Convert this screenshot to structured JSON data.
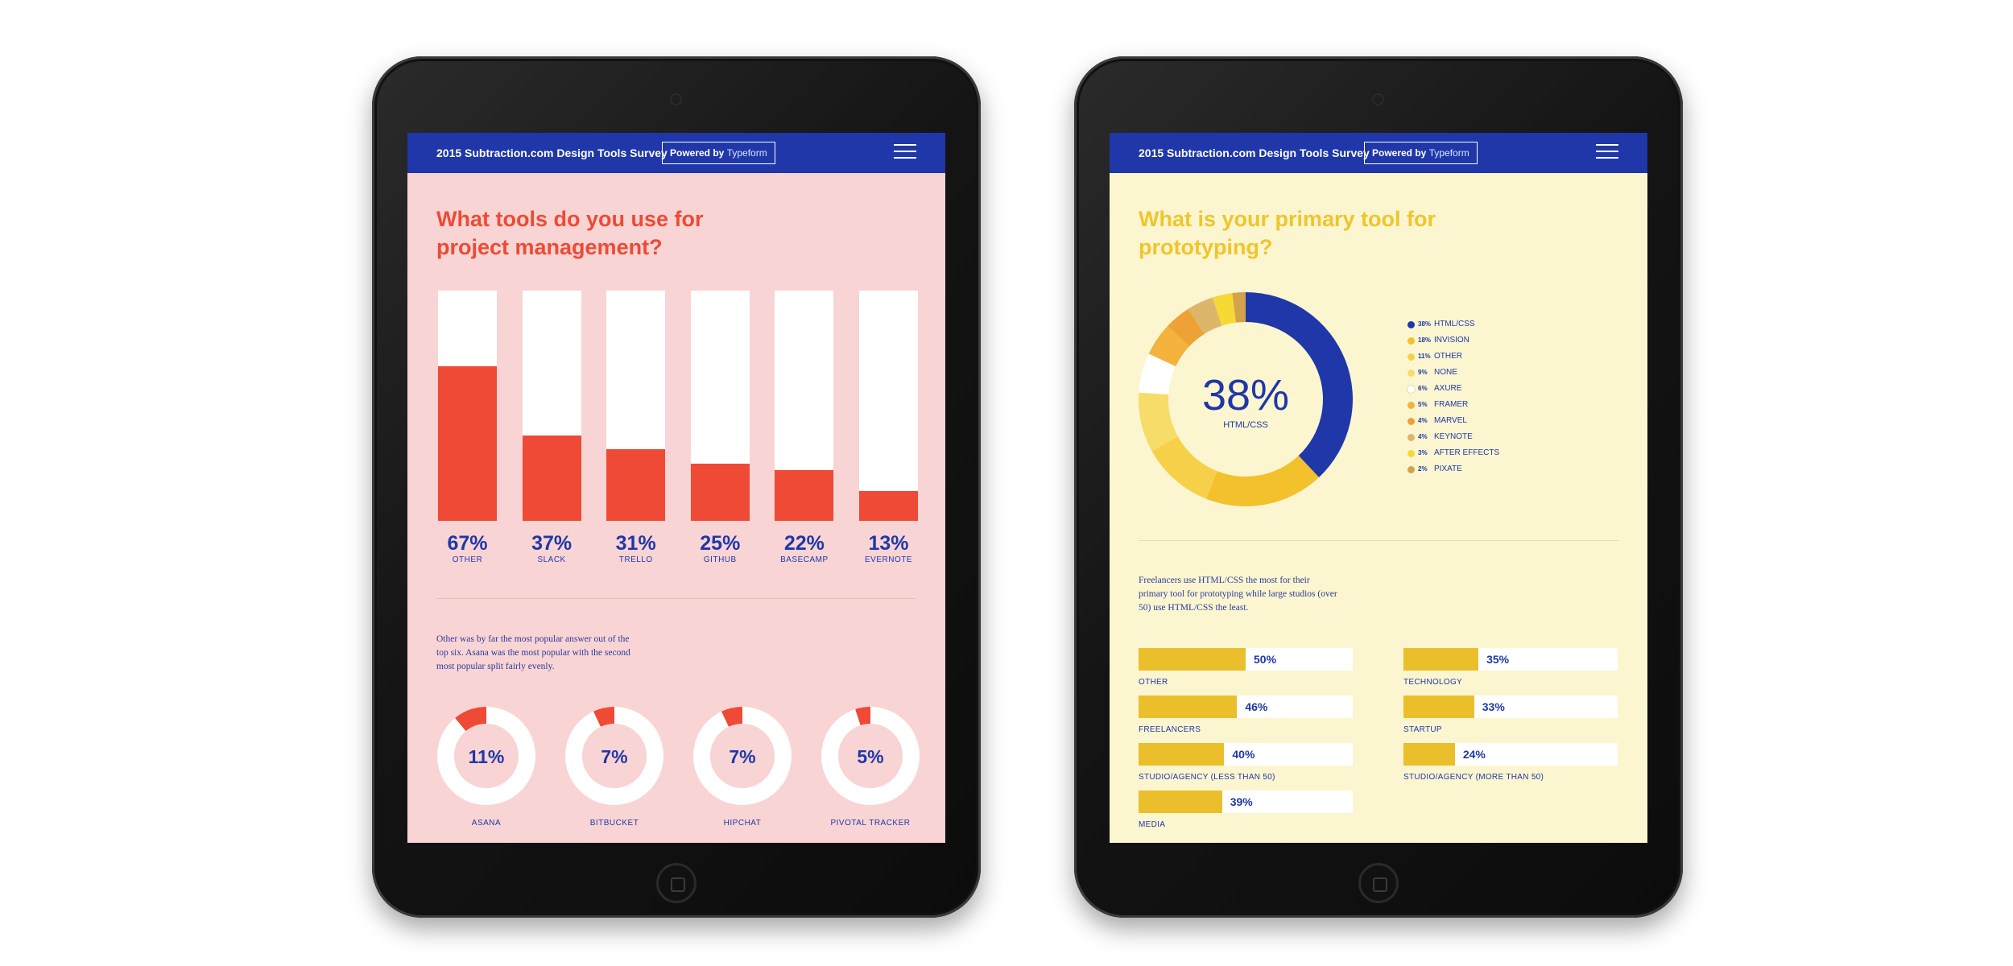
{
  "header": {
    "title": "2015 Subtraction.com Design Tools Survey",
    "powered_by": "Powered by",
    "brand": "Typeform"
  },
  "left_screen": {
    "question": "What tools do you use for project management?",
    "note": "Other was by far the most popular answer out of the top six. Asana was the most popular with the second most popular split fairly evenly."
  },
  "right_screen": {
    "question": "What is your primary tool for prototyping?",
    "note": "Freelancers use HTML/CSS the most for their primary tool for prototyping while large studios (over 50) use HTML/CSS the least."
  },
  "colors": {
    "navy": "#1f37a8",
    "red": "#ee4a35",
    "pink_bg": "#f9d4d4",
    "yellow": "#eabf2b",
    "cream_bg": "#fbf6cf"
  },
  "chart_data": [
    {
      "type": "bar",
      "title": "What tools do you use for project management?",
      "categories": [
        "OTHER",
        "SLACK",
        "TRELLO",
        "GITHUB",
        "BASECAMP",
        "EVERNOTE"
      ],
      "values": [
        67,
        37,
        31,
        25,
        22,
        13
      ],
      "labels": [
        "67%",
        "37%",
        "31%",
        "25%",
        "22%",
        "13%"
      ],
      "ylim": [
        0,
        100
      ]
    },
    {
      "type": "pie",
      "categories": [
        "ASANA",
        "BITBUCKET",
        "HIPCHAT",
        "PIVOTAL TRACKER"
      ],
      "values": [
        11,
        7,
        7,
        5
      ],
      "labels": [
        "11%",
        "7%",
        "7%",
        "5%"
      ]
    },
    {
      "type": "pie",
      "title": "What is your primary tool for prototyping?",
      "center_value": "38%",
      "center_label": "HTML/CSS",
      "categories": [
        "HTML/CSS",
        "INVISION",
        "OTHER",
        "NONE",
        "AXURE",
        "FRAMER",
        "MARVEL",
        "KEYNOTE",
        "AFTER EFFECTS",
        "PIXATE"
      ],
      "values": [
        38,
        18,
        11,
        9,
        6,
        5,
        4,
        4,
        3,
        2
      ],
      "labels": [
        "38%",
        "18%",
        "11%",
        "9%",
        "6%",
        "5%",
        "4%",
        "4%",
        "3%",
        "2%"
      ],
      "colors": [
        "#1f37a8",
        "#f2c12c",
        "#f7d04a",
        "#f8dc6a",
        "#ffffff",
        "#f3b33d",
        "#eea235",
        "#dcb66a",
        "#f5d934",
        "#d4a24a"
      ],
      "legend": "right"
    },
    {
      "type": "bar",
      "orientation": "horizontal",
      "categories": [
        "OTHER",
        "FREELANCERS",
        "STUDIO/AGENCY (LESS THAN 50)",
        "MEDIA",
        "TECHNOLOGY",
        "STARTUP",
        "STUDIO/AGENCY (MORE THAN 50)"
      ],
      "values": [
        50,
        46,
        40,
        39,
        35,
        33,
        24
      ],
      "labels": [
        "50%",
        "46%",
        "40%",
        "39%",
        "35%",
        "33%",
        "24%"
      ],
      "xlim": [
        0,
        100
      ]
    }
  ]
}
